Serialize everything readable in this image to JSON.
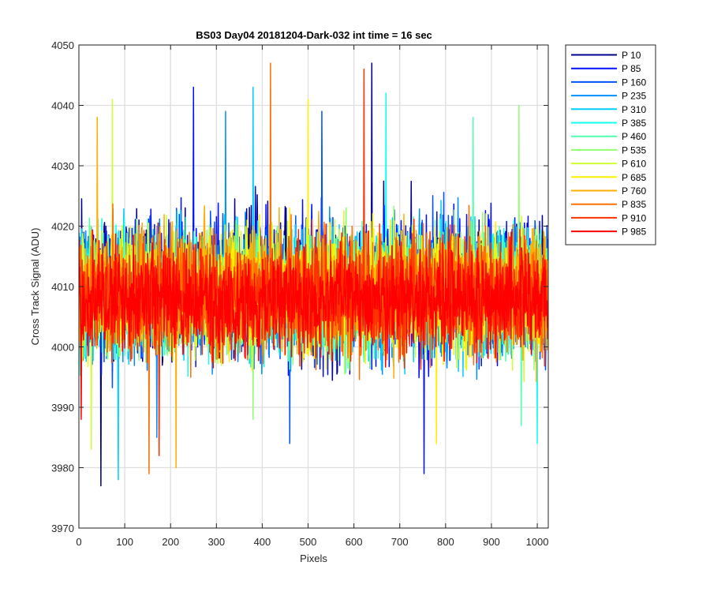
{
  "chart_data": {
    "type": "line",
    "title": "BS03 Day04 20181204-Dark-032 int time = 16 sec",
    "xlabel": "Pixels",
    "ylabel": "Cross Track Signal (ADU)",
    "xlim": [
      0,
      1024
    ],
    "ylim": [
      3970,
      4050
    ],
    "xticks": [
      0,
      100,
      200,
      300,
      400,
      500,
      600,
      700,
      800,
      900,
      1000
    ],
    "yticks": [
      3970,
      3980,
      3990,
      4000,
      4010,
      4020,
      4030,
      4040,
      4050
    ],
    "grid": true,
    "legend_position": "outside-top-right",
    "series": [
      {
        "name": "P 10",
        "color": "#00008F",
        "mean": 4010,
        "noise": 9,
        "max": {
          "x": 639,
          "y": 4047
        },
        "min": {
          "x": 48,
          "y": 3977
        }
      },
      {
        "name": "P 85",
        "color": "#0010FF",
        "mean": 4010,
        "noise": 9,
        "max": {
          "x": 250,
          "y": 4043
        },
        "min": {
          "x": 753,
          "y": 3979
        }
      },
      {
        "name": "P 160",
        "color": "#0050FF",
        "mean": 4009,
        "noise": 8.5,
        "max": {
          "x": 530,
          "y": 4039
        },
        "min": {
          "x": 460,
          "y": 3984
        }
      },
      {
        "name": "P 235",
        "color": "#0090FF",
        "mean": 4009,
        "noise": 8.5,
        "max": {
          "x": 320,
          "y": 4039
        },
        "min": {
          "x": 170,
          "y": 3985
        }
      },
      {
        "name": "P 310",
        "color": "#00CFFF",
        "mean": 4009,
        "noise": 8.5,
        "max": {
          "x": 380,
          "y": 4043
        },
        "min": {
          "x": 86,
          "y": 3978
        }
      },
      {
        "name": "P 385",
        "color": "#10FFEF",
        "mean": 4009,
        "noise": 8,
        "max": {
          "x": 670,
          "y": 4042
        },
        "min": {
          "x": 1000,
          "y": 3984
        }
      },
      {
        "name": "P 460",
        "color": "#50FFAF",
        "mean": 4009,
        "noise": 8,
        "max": {
          "x": 860,
          "y": 4038
        },
        "min": {
          "x": 965,
          "y": 3987
        }
      },
      {
        "name": "P 535",
        "color": "#90FF70",
        "mean": 4009,
        "noise": 8,
        "max": {
          "x": 960,
          "y": 4040
        },
        "min": {
          "x": 380,
          "y": 3988
        }
      },
      {
        "name": "P 610",
        "color": "#CFFF30",
        "mean": 4009,
        "noise": 8,
        "max": {
          "x": 73,
          "y": 4041
        },
        "min": {
          "x": 27,
          "y": 3983
        }
      },
      {
        "name": "P 685",
        "color": "#FFEF00",
        "mean": 4009,
        "noise": 8,
        "max": {
          "x": 500,
          "y": 4041
        },
        "min": {
          "x": 780,
          "y": 3984
        }
      },
      {
        "name": "P 760",
        "color": "#FFAF00",
        "mean": 4009,
        "noise": 8,
        "max": {
          "x": 40,
          "y": 4038
        },
        "min": {
          "x": 212,
          "y": 3980
        }
      },
      {
        "name": "P 835",
        "color": "#FF7000",
        "mean": 4009,
        "noise": 8,
        "max": {
          "x": 418,
          "y": 4047
        },
        "min": {
          "x": 153,
          "y": 3979
        }
      },
      {
        "name": "P 910",
        "color": "#FF3000",
        "mean": 4008,
        "noise": 7.5,
        "max": {
          "x": 622,
          "y": 4046
        },
        "min": {
          "x": 175,
          "y": 3982
        }
      },
      {
        "name": "P 985",
        "color": "#FF0000",
        "mean": 4008,
        "noise": 6.5,
        "max": {
          "x": 5,
          "y": 4031
        },
        "min": {
          "x": 5,
          "y": 3988
        }
      }
    ]
  }
}
